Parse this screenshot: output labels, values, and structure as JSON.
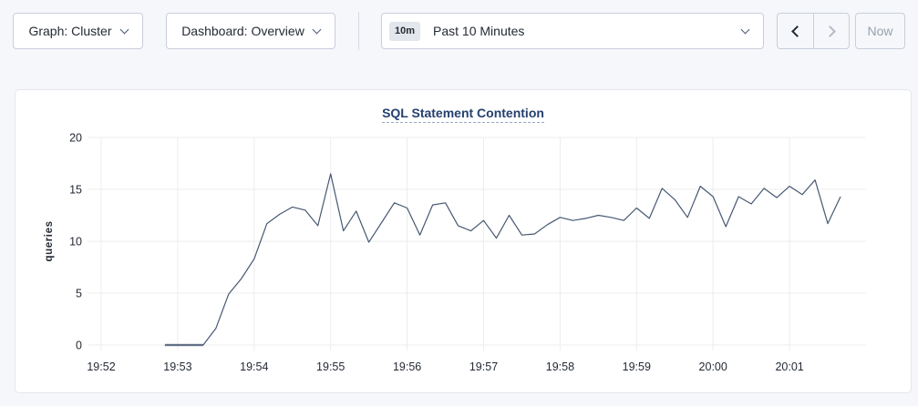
{
  "toolbar": {
    "graph_dropdown_label": "Graph: Cluster",
    "dashboard_dropdown_label": "Dashboard: Overview",
    "time_window_badge": "10m",
    "time_window_label": "Past 10 Minutes",
    "now_label": "Now",
    "back_enabled": true,
    "forward_enabled": false,
    "now_enabled": false,
    "icons": {
      "graph_dropdown": "chevron-down",
      "dashboard_dropdown": "chevron-down",
      "time_window": "chevron-down",
      "back": "chevron-left",
      "forward": "chevron-right"
    }
  },
  "colors": {
    "page_bg": "#f5f7fa",
    "panel_bg": "#ffffff",
    "panel_border": "#e3e6ec",
    "button_border": "#c9cedb",
    "text": "#242a35",
    "muted_text": "#98a1b0",
    "title": "#24406f",
    "title_underline": "#9aa8c4",
    "grid": "#ececee",
    "line": "#475872",
    "zero_run": "#8e96a4",
    "badge_bg": "#e2e6ed"
  },
  "chart_data": {
    "type": "line",
    "title": "SQL Statement Contention",
    "xlabel": "",
    "ylabel": "queries",
    "ylim": [
      0,
      20
    ],
    "yticks": [
      0,
      5,
      10,
      15,
      20
    ],
    "x_tick_labels": [
      "19:52",
      "19:53",
      "19:54",
      "19:55",
      "19:56",
      "19:57",
      "19:58",
      "19:59",
      "20:00",
      "20:01"
    ],
    "x_window_minutes": 10,
    "grid": true,
    "legend": false,
    "series": [
      {
        "name": "SQL Statement Contention",
        "start_time": "19:52:50",
        "start_offset_seconds": 50,
        "interval_seconds": 10,
        "values": [
          0,
          0,
          0,
          0,
          1.6,
          4.9,
          6.4,
          8.3,
          11.7,
          12.6,
          13.3,
          13.0,
          11.5,
          16.5,
          11.0,
          12.9,
          9.9,
          11.8,
          13.7,
          13.2,
          10.6,
          13.5,
          13.7,
          11.5,
          11.0,
          12.0,
          10.3,
          12.5,
          10.6,
          10.7,
          11.6,
          12.3,
          12.0,
          12.2,
          12.5,
          12.3,
          12.0,
          13.2,
          12.2,
          15.1,
          14.0,
          12.3,
          15.3,
          14.3,
          11.4,
          14.3,
          13.6,
          15.1,
          14.2,
          15.3,
          14.5,
          15.9,
          11.7,
          14.3
        ]
      }
    ]
  }
}
